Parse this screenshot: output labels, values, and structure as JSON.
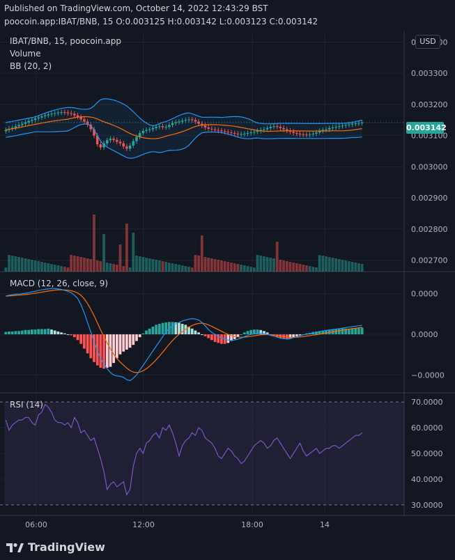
{
  "header": {
    "line1": "Published on TradingView.com, October 14, 2022 12:43:29 BST",
    "line2": "poocoin.app:IBAT/BNB, 15  O:0.003125 H:0.003142 L:0.003123 C:0.003142"
  },
  "legend": {
    "symbol": "IBAT/BNB, 15, poocoin.app",
    "volume": "Volume",
    "bb": "BB (20, 2)",
    "macd": "MACD (12, 26, close, 9)",
    "rsi": "RSI (14)"
  },
  "currency_button": "USD",
  "last_price_label": "0.003142",
  "footer": {
    "brand": "TradingView"
  },
  "colors": {
    "background": "#131722",
    "up": "#26a69a",
    "down": "#ef5350",
    "bb_band": "#2196f3",
    "bb_basis": "#ff6d00",
    "macd_line": "#2196f3",
    "signal_line": "#ff6d00",
    "rsi_line": "#7e57c2"
  },
  "chart_data": [
    {
      "type": "candlestick",
      "title": "IBAT/BNB, 15, poocoin.app",
      "y_tick_labels": [
        "0.003400",
        "0.003300",
        "0.003200",
        "0.003100",
        "0.003000",
        "0.002900",
        "0.002800",
        "0.002700"
      ],
      "x_tick_labels": [
        "06:00",
        "12:00",
        "18:00",
        "14"
      ],
      "ylim": [
        0.00269,
        0.00341
      ],
      "last_price": 0.003142,
      "close": [
        0.003118,
        0.003122,
        0.003125,
        0.00313,
        0.003134,
        0.003138,
        0.003142,
        0.003147,
        0.00315,
        0.003155,
        0.003158,
        0.003162,
        0.003165,
        0.003168,
        0.00317,
        0.003172,
        0.003174,
        0.003175,
        0.003174,
        0.003172,
        0.00317,
        0.003165,
        0.00316,
        0.003152,
        0.003145,
        0.003135,
        0.00312,
        0.0031,
        0.003072,
        0.003062,
        0.003075,
        0.003085,
        0.00309,
        0.003086,
        0.00308,
        0.003075,
        0.003065,
        0.003058,
        0.003068,
        0.003082,
        0.003095,
        0.003108,
        0.003115,
        0.003118,
        0.00312,
        0.003124,
        0.003128,
        0.00313,
        0.003127,
        0.003128,
        0.003134,
        0.00314,
        0.003143,
        0.003145,
        0.003148,
        0.00315,
        0.003152,
        0.00315,
        0.003145,
        0.003138,
        0.003132,
        0.003126,
        0.003122,
        0.00312,
        0.003118,
        0.003116,
        0.003114,
        0.003112,
        0.00311,
        0.003108,
        0.003106,
        0.003104,
        0.003105,
        0.003106,
        0.003108,
        0.00311,
        0.003112,
        0.003115,
        0.003118,
        0.00312,
        0.003124,
        0.003128,
        0.00313,
        0.003128,
        0.003124,
        0.00312,
        0.003116,
        0.003112,
        0.003108,
        0.003106,
        0.003104,
        0.003103,
        0.003102,
        0.003104,
        0.003106,
        0.00311,
        0.003115,
        0.003118,
        0.00312,
        0.003124,
        0.003126,
        0.003128,
        0.00313,
        0.003132,
        0.003134,
        0.003136,
        0.003138,
        0.003139,
        0.00314,
        0.003142
      ],
      "series": [
        {
          "name": "Volume",
          "type": "bar"
        },
        {
          "name": "BB (20, 2)",
          "type": "band"
        }
      ]
    },
    {
      "type": "line",
      "title": "MACD (12, 26, close, 9)",
      "y_tick_labels": [
        "0.0000",
        "0.0000",
        "−0.0000"
      ],
      "ylim": [
        -1.05,
        1.05
      ],
      "macd": [
        0.8,
        0.82,
        0.83,
        0.84,
        0.84,
        0.85,
        0.86,
        0.87,
        0.89,
        0.9,
        0.92,
        0.93,
        0.94,
        0.95,
        0.96,
        0.96,
        0.95,
        0.94,
        0.92,
        0.9,
        0.87,
        0.82,
        0.75,
        0.62,
        0.45,
        0.25,
        0.05,
        -0.15,
        -0.35,
        -0.5,
        -0.62,
        -0.72,
        -0.8,
        -0.85,
        -0.87,
        -0.88,
        -0.9,
        -0.95,
        -0.97,
        -0.92,
        -0.85,
        -0.75,
        -0.65,
        -0.55,
        -0.45,
        -0.35,
        -0.25,
        -0.15,
        -0.05,
        0.05,
        0.12,
        0.18,
        0.22,
        0.25,
        0.28,
        0.3,
        0.32,
        0.33,
        0.32,
        0.3,
        0.25,
        0.18,
        0.1,
        0.04,
        0.0,
        -0.04,
        -0.08,
        -0.1,
        -0.12,
        -0.13,
        -0.12,
        -0.1,
        -0.08,
        -0.05,
        -0.02,
        0.0,
        0.01,
        0.02,
        0.02,
        0.01,
        0.0,
        -0.02,
        -0.04,
        -0.06,
        -0.08,
        -0.09,
        -0.1,
        -0.09,
        -0.07,
        -0.05,
        -0.03,
        -0.01,
        0.0,
        0.01,
        0.02,
        0.03,
        0.05,
        0.07,
        0.08,
        0.09,
        0.1,
        0.11,
        0.12,
        0.13,
        0.14,
        0.15,
        0.16,
        0.17,
        0.18,
        0.19
      ],
      "histogram": [
        0.05,
        0.06,
        0.06,
        0.07,
        0.07,
        0.08,
        0.09,
        0.09,
        0.1,
        0.1,
        0.11,
        0.11,
        0.11,
        0.12,
        0.1,
        0.08,
        0.06,
        0.04,
        0.02,
        0.0,
        -0.02,
        -0.06,
        -0.12,
        -0.2,
        -0.3,
        -0.4,
        -0.5,
        -0.58,
        -0.65,
        -0.7,
        -0.72,
        -0.7,
        -0.68,
        -0.6,
        -0.5,
        -0.42,
        -0.36,
        -0.32,
        -0.28,
        -0.22,
        -0.14,
        -0.06,
        0.02,
        0.08,
        0.12,
        0.16,
        0.2,
        0.22,
        0.24,
        0.25,
        0.26,
        0.26,
        0.25,
        0.24,
        0.22,
        0.2,
        0.16,
        0.12,
        0.08,
        0.04,
        0.0,
        -0.04,
        -0.08,
        -0.12,
        -0.16,
        -0.18,
        -0.2,
        -0.2,
        -0.18,
        -0.14,
        -0.1,
        -0.05,
        0.0,
        0.04,
        0.07,
        0.09,
        0.1,
        0.1,
        0.09,
        0.07,
        0.04,
        0.0,
        -0.03,
        -0.06,
        -0.08,
        -0.09,
        -0.09,
        -0.08,
        -0.06,
        -0.04,
        -0.02,
        0.0,
        0.02,
        0.03,
        0.05,
        0.06,
        0.07,
        0.08,
        0.09,
        0.1,
        0.1,
        0.11,
        0.11,
        0.12,
        0.12,
        0.12,
        0.13,
        0.13,
        0.13,
        0.14
      ]
    },
    {
      "type": "line",
      "title": "RSI (14)",
      "y_tick_labels": [
        "70.0000",
        "60.0000",
        "50.0000",
        "40.0000",
        "30.0000"
      ],
      "ylim": [
        27,
        73
      ],
      "upper_band": 70,
      "lower_band": 30,
      "values": [
        63,
        59,
        61,
        62,
        63,
        63,
        64,
        64,
        62,
        61,
        65,
        66,
        69,
        68,
        66,
        63,
        62,
        62,
        61,
        62,
        60,
        64,
        62,
        58,
        59,
        57,
        55,
        56,
        52,
        48,
        43,
        36,
        38,
        39,
        37,
        38,
        39,
        34,
        36,
        45,
        50,
        52,
        50,
        54,
        55,
        57,
        58,
        56,
        60,
        59,
        61,
        58,
        54,
        49,
        53,
        55,
        56,
        58,
        57,
        60,
        59,
        56,
        55,
        54,
        52,
        49,
        48,
        50,
        52,
        51,
        49,
        48,
        46,
        47,
        49,
        51,
        53,
        54,
        55,
        54,
        52,
        53,
        55,
        56,
        54,
        52,
        50,
        48,
        50,
        52,
        54,
        51,
        49,
        50,
        51,
        52,
        50,
        51,
        52,
        52,
        53,
        53,
        52,
        53,
        54,
        55,
        56,
        57,
        57,
        58
      ]
    }
  ]
}
